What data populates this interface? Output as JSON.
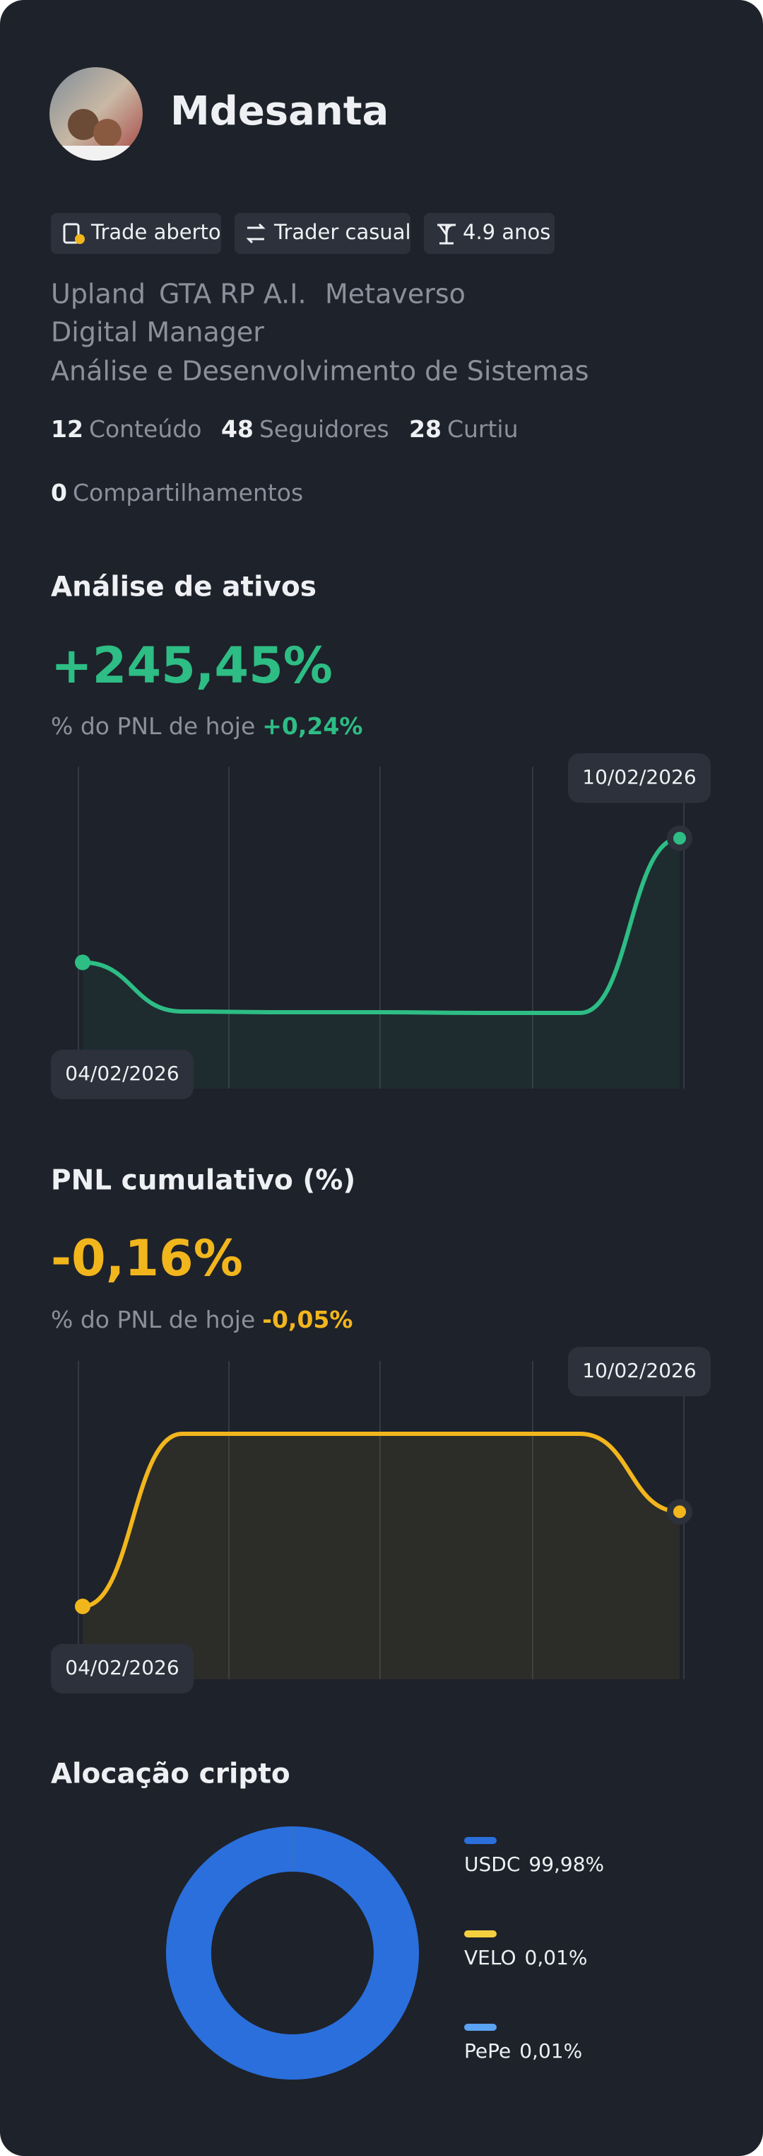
{
  "profile": {
    "name": "Mdesanta",
    "chips": [
      "Trade aberto",
      "Trader casual",
      "4.9 anos"
    ],
    "tags": [
      "Upland",
      "GTA RP A.I.",
      "Metaverso",
      "Digital Manager",
      "Análise e Desenvolvimento de Sistemas"
    ],
    "stats": [
      {
        "value": "12",
        "label": "Conteúdo"
      },
      {
        "value": "48",
        "label": "Seguidores"
      },
      {
        "value": "28",
        "label": "Curtiu"
      },
      {
        "value": "0",
        "label": "Compartilhamentos"
      }
    ]
  },
  "asset_chart": {
    "title": "Análise de ativos",
    "headline": "+245,45%",
    "today_label": "% do PNL de hoje",
    "today_value": "+0,24%",
    "start_date": "04/02/2026",
    "end_date": "10/02/2026",
    "color": "#2dbd85",
    "values": [
      71,
      2,
      1,
      1,
      0,
      0,
      245.45
    ]
  },
  "pnl_chart": {
    "title": "PNL cumulativo (%)",
    "headline": "-0,16%",
    "today_label": "% do PNL de hoje",
    "today_value": "-0,05%",
    "start_date": "04/02/2026",
    "end_date": "10/02/2026",
    "color": "#f2b61d",
    "values": [
      -0.5,
      0.12,
      0.12,
      0.12,
      0.12,
      0.12,
      -0.16
    ]
  },
  "allocation": {
    "title": "Alocação cripto",
    "type": "pie",
    "categories": [
      "USDC",
      "VELO",
      "PePe"
    ],
    "values": [
      99.98,
      0.01,
      0.01
    ],
    "value_labels": [
      "99,98%",
      "0,01%",
      "0,01%"
    ],
    "colors": [
      "#2a6fdc",
      "#f4d03f",
      "#5aa2f2"
    ]
  }
}
